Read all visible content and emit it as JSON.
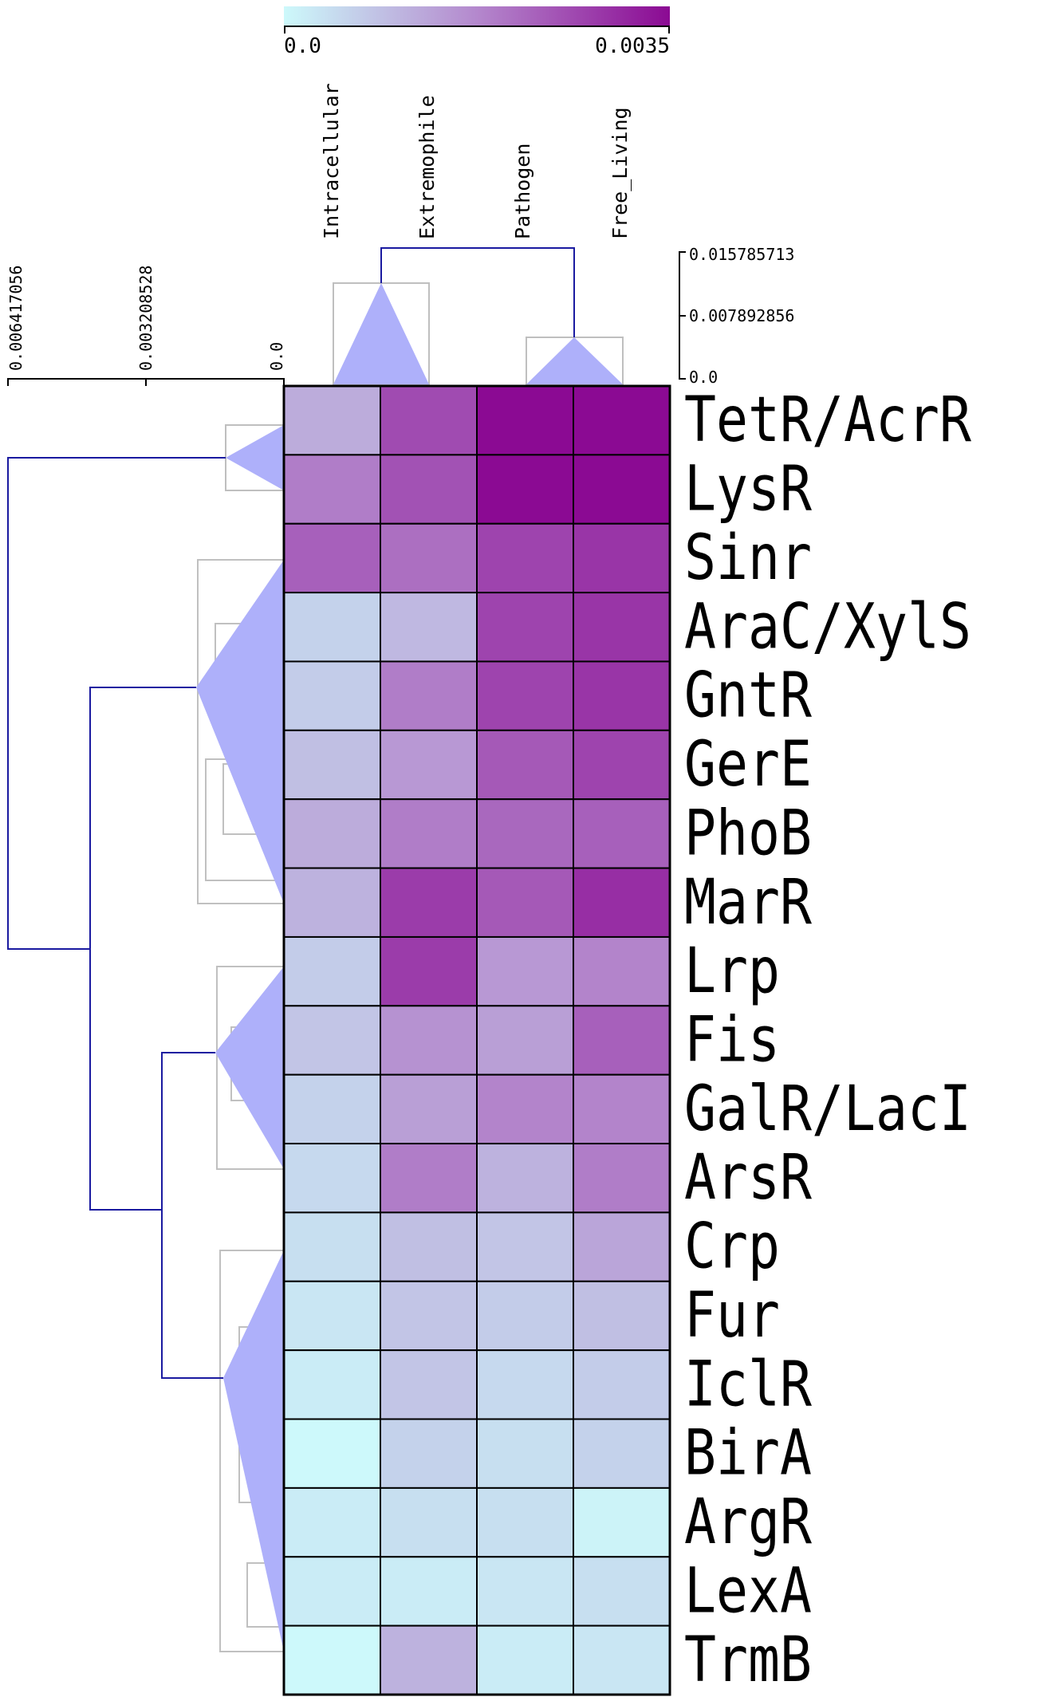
{
  "chart_data": {
    "type": "heatmap",
    "title": "",
    "columns": [
      "Intracellular",
      "Extremophile",
      "Pathogen",
      "Free_Living"
    ],
    "rows": [
      "TetR/AcrR",
      "LysR",
      "Sinr",
      "AraC/XylS",
      "GntR",
      "GerE",
      "PhoB",
      "MarR",
      "Lrp",
      "Fis",
      "GalR/LacI",
      "ArsR",
      "Crp",
      "Fur",
      "IclR",
      "BirA",
      "ArgR",
      "LexA",
      "TrmB"
    ],
    "values": [
      [
        0.0012,
        0.0026,
        0.0035,
        0.0035
      ],
      [
        0.0019,
        0.0025,
        0.0035,
        0.0035
      ],
      [
        0.0023,
        0.0021,
        0.0027,
        0.0029
      ],
      [
        0.0006,
        0.001,
        0.0027,
        0.0029
      ],
      [
        0.0007,
        0.0019,
        0.0027,
        0.0029
      ],
      [
        0.0009,
        0.0015,
        0.0024,
        0.0027
      ],
      [
        0.0012,
        0.0019,
        0.0022,
        0.0023
      ],
      [
        0.0011,
        0.0028,
        0.0024,
        0.003
      ],
      [
        0.0007,
        0.0028,
        0.0015,
        0.0018
      ],
      [
        0.0008,
        0.0016,
        0.0014,
        0.0023
      ],
      [
        0.0006,
        0.0014,
        0.0018,
        0.0018
      ],
      [
        0.0005,
        0.0019,
        0.0011,
        0.0019
      ],
      [
        0.0004,
        0.0009,
        0.0008,
        0.0013
      ],
      [
        0.0003,
        0.0008,
        0.0007,
        0.0009
      ],
      [
        0.0002,
        0.0008,
        0.0005,
        0.0007
      ],
      [
        0.0,
        0.0006,
        0.0004,
        0.0006
      ],
      [
        0.0002,
        0.0004,
        0.0004,
        0.0001
      ],
      [
        0.0002,
        0.0002,
        0.0003,
        0.0004
      ],
      [
        0.0,
        0.0011,
        0.0002,
        0.0003
      ]
    ],
    "colorbar": {
      "min": 0.0,
      "max": 0.0035,
      "min_label": "0.0",
      "max_label": "0.0035",
      "low_color": "#cdf9fb",
      "mid_color": "#b488cd",
      "high_color": "#8b0a93"
    },
    "row_scale": {
      "labels": [
        "0.006417056",
        "0.003208528",
        "0.0"
      ],
      "max": 0.006417056
    },
    "col_scale": {
      "labels": [
        "0.015785713",
        "0.007892856",
        "0.0"
      ],
      "max": 0.015785713
    },
    "colors": {
      "dendro_line": "#1a1aa0",
      "collapsed_fill": "#aeb0fa",
      "collapsed_box": "#bfbfbf",
      "grid": "#000000"
    }
  }
}
